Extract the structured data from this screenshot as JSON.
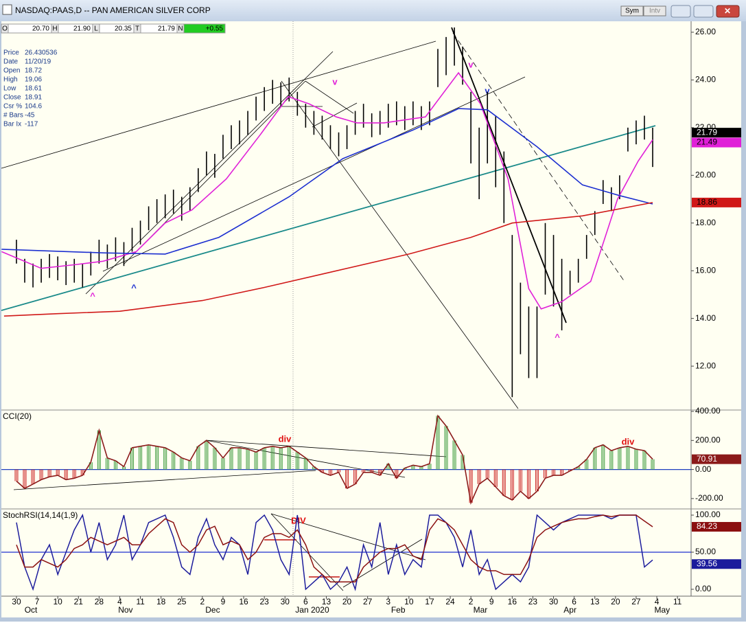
{
  "window": {
    "title": "NASDAQ:PAAS,D -- PAN AMERICAN SILVER CORP",
    "buttons": [
      "Sym",
      "Intv"
    ]
  },
  "ohlc_bar": [
    {
      "key": "O",
      "value": "20.70"
    },
    {
      "key": "H",
      "value": "21.90"
    },
    {
      "key": "L",
      "value": "20.35"
    },
    {
      "key": "T",
      "value": "21.79"
    },
    {
      "key": "N",
      "value": "+0.55"
    }
  ],
  "info_panel": [
    {
      "label": "Price",
      "value": "26.430536"
    },
    {
      "label": "Date",
      "value": "11/20/19"
    },
    {
      "label": "Open",
      "value": "18.72"
    },
    {
      "label": "High",
      "value": "19.06"
    },
    {
      "label": "Low",
      "value": "18.61"
    },
    {
      "label": "Close",
      "value": "18.91"
    },
    {
      "label": "Csr %",
      "value": "104.6"
    },
    {
      "label": "# Bars",
      "value": "-45"
    },
    {
      "label": "Bar Ix",
      "value": "-117"
    }
  ],
  "chart_data": [
    {
      "type": "ohlc",
      "color": "#000000",
      "ylim": [
        10.16,
        26.43
      ],
      "yticks": [
        {
          "value": 12,
          "label": "12.00"
        },
        {
          "value": 14,
          "label": "14.00"
        },
        {
          "value": 16,
          "label": "16.00"
        },
        {
          "value": 18,
          "label": "18.00"
        },
        {
          "value": 20,
          "label": "20.00"
        },
        {
          "value": 22,
          "label": "22.00"
        },
        {
          "value": 24,
          "label": "24.00"
        },
        {
          "value": 26,
          "label": "26.00"
        }
      ],
      "x": [
        0,
        2,
        4,
        6,
        8,
        10,
        12,
        14,
        16,
        18,
        20,
        22,
        24,
        26,
        28,
        30,
        32,
        34,
        36,
        38,
        40,
        42,
        44,
        46,
        48,
        50,
        52,
        54,
        56,
        58,
        60,
        62,
        64,
        66,
        68,
        70,
        72,
        74,
        76,
        78,
        80,
        82,
        84,
        86,
        88,
        90,
        92,
        94,
        96,
        98,
        100,
        102,
        104,
        106,
        108,
        110,
        112,
        114,
        116,
        118,
        120,
        122,
        124,
        126,
        128,
        130,
        132,
        134,
        136,
        138,
        140,
        142,
        144,
        146,
        148,
        150,
        152,
        154
      ],
      "high": [
        17.3,
        16.5,
        16.3,
        16.5,
        16.7,
        16.6,
        16.4,
        16.5,
        16.3,
        16.8,
        17.3,
        17.1,
        17.4,
        17.2,
        17.8,
        18.1,
        18.7,
        19.0,
        19.2,
        19.4,
        19.1,
        19.5,
        20.3,
        21.0,
        20.9,
        21.7,
        22.1,
        22.3,
        22.7,
        23.3,
        23.7,
        24.0,
        23.9,
        24.1,
        23.5,
        23.0,
        22.7,
        22.5,
        22.1,
        21.8,
        22.1,
        22.7,
        23.0,
        22.6,
        22.7,
        23.0,
        23.1,
        22.9,
        23.1,
        22.9,
        23.1,
        25.3,
        25.8,
        26.2,
        25.4,
        23.5,
        22.0,
        23.5,
        22.5,
        21.0,
        17.5,
        15.5,
        14.5,
        14.5,
        18.0,
        17.5,
        16.5,
        16.0,
        16.5,
        17.5,
        18.5,
        19.8,
        19.5,
        20.0,
        22.0,
        22.3,
        22.5,
        22.0
      ],
      "low": [
        16.3,
        15.5,
        15.3,
        15.5,
        15.7,
        15.6,
        15.4,
        15.5,
        15.3,
        15.8,
        16.3,
        16.1,
        16.4,
        16.2,
        16.8,
        17.1,
        17.7,
        18.0,
        18.2,
        18.4,
        18.1,
        18.5,
        19.3,
        20.0,
        19.9,
        20.7,
        21.1,
        21.3,
        21.7,
        22.3,
        22.7,
        23.0,
        22.9,
        23.1,
        22.5,
        22.0,
        21.7,
        21.5,
        21.1,
        20.8,
        21.1,
        21.7,
        22.0,
        21.6,
        21.7,
        22.0,
        22.1,
        21.9,
        22.1,
        21.9,
        22.1,
        23.7,
        24.2,
        24.6,
        23.8,
        20.5,
        19.0,
        20.5,
        19.5,
        18.0,
        10.7,
        12.5,
        11.5,
        11.5,
        15.0,
        14.5,
        13.5,
        15.0,
        15.5,
        16.5,
        17.5,
        18.8,
        18.5,
        19.0,
        21.0,
        21.3,
        21.5,
        20.35
      ],
      "series": [
        {
          "color": "#e020d8",
          "x": [
            -3.6,
            6,
            14,
            21,
            29,
            36,
            42.5,
            50.8,
            59,
            65.8,
            70.8,
            77.4,
            82.4,
            89,
            99,
            107,
            112.3,
            119,
            124,
            127,
            132,
            139,
            145.5,
            150.5,
            154
          ],
          "values": [
            16.8,
            16.1,
            16.25,
            16.4,
            16.8,
            18.0,
            18.55,
            19.85,
            21.7,
            23.3,
            23.0,
            22.45,
            22.2,
            22.2,
            22.45,
            24.3,
            23.0,
            19.85,
            15.25,
            14.4,
            14.7,
            15.55,
            19.0,
            20.6,
            21.49
          ]
        },
        {
          "color": "#1c2fd0",
          "x": [
            -3.6,
            21,
            36,
            49,
            66,
            79,
            96,
            107,
            114,
            126,
            137,
            146,
            154
          ],
          "values": [
            16.9,
            16.75,
            16.7,
            17.4,
            19.1,
            20.7,
            21.9,
            22.8,
            22.75,
            21.2,
            19.6,
            19.15,
            18.8
          ]
        },
        {
          "color": "#d01818",
          "x": [
            -3,
            10,
            25,
            45,
            60,
            75,
            95,
            110,
            120,
            137,
            154
          ],
          "values": [
            14.1,
            14.2,
            14.3,
            14.75,
            15.3,
            15.9,
            16.7,
            17.4,
            18.0,
            18.3,
            18.86
          ]
        }
      ],
      "annotations": [
        {
          "text": "^",
          "color": "#e020d8"
        },
        {
          "text": "^",
          "color": "#1c2fd0"
        },
        {
          "text": "v",
          "color": "#e020d8"
        },
        {
          "text": "v",
          "color": "#e020d8"
        },
        {
          "text": "v",
          "color": "#1c2fd0"
        },
        {
          "text": "^",
          "color": "#e020d8"
        }
      ]
    },
    {
      "type": "cci",
      "title": "CCI(20)",
      "pos_color": "#3a9a3a",
      "neg_color": "#cc2222",
      "line_color": "#8b1a1a",
      "hline": 0,
      "hline_color": "#1f3fbf",
      "ylim": [
        -271.4,
        404.8
      ],
      "yticks": [
        {
          "value": -200,
          "label": "-200.00"
        },
        {
          "value": 0,
          "label": "0.00"
        },
        {
          "value": 200,
          "label": "200.00"
        },
        {
          "value": 400,
          "label": "400.00"
        }
      ],
      "x": [
        0,
        2,
        4,
        6,
        8,
        10,
        12,
        14,
        16,
        18,
        20,
        22,
        24,
        26,
        28,
        30,
        32,
        34,
        36,
        38,
        40,
        42,
        44,
        46,
        48,
        50,
        52,
        54,
        56,
        58,
        60,
        62,
        64,
        66,
        68,
        70,
        72,
        74,
        76,
        78,
        80,
        82,
        84,
        86,
        88,
        90,
        92,
        94,
        96,
        98,
        100,
        102,
        104,
        106,
        108,
        110,
        112,
        114,
        116,
        118,
        120,
        122,
        124,
        126,
        128,
        130,
        132,
        134,
        136,
        138,
        140,
        142,
        144,
        146,
        148,
        150,
        152,
        154
      ],
      "values": [
        -80,
        -130,
        -100,
        -70,
        -50,
        -40,
        -70,
        -60,
        -40,
        50,
        270,
        80,
        60,
        20,
        150,
        160,
        170,
        160,
        150,
        120,
        80,
        60,
        160,
        200,
        150,
        80,
        150,
        150,
        140,
        120,
        150,
        160,
        150,
        160,
        120,
        80,
        20,
        -20,
        -40,
        -20,
        -130,
        -100,
        -20,
        -20,
        -40,
        40,
        -60,
        10,
        30,
        20,
        40,
        370,
        300,
        200,
        100,
        -230,
        -100,
        -60,
        -120,
        -180,
        -210,
        -150,
        -200,
        -150,
        -60,
        -40,
        -40,
        -10,
        20,
        70,
        150,
        170,
        130,
        150,
        160,
        140,
        130,
        70.91
      ],
      "annotations": [
        {
          "text": "div",
          "color": "#e01010"
        },
        {
          "text": "div",
          "color": "#e01010"
        }
      ]
    },
    {
      "type": "line",
      "title": "StochRSI(14,14(1,9)",
      "hline": 50,
      "hline_color": "#1f2fd0",
      "ylim": [
        -9.26,
        107.4
      ],
      "yticks": [
        {
          "value": 0,
          "label": "0.00"
        },
        {
          "value": 50,
          "label": "50.00"
        },
        {
          "value": 100,
          "label": "100.00"
        }
      ],
      "xlim": [
        -3.65,
        163.3
      ],
      "xticks": [
        {
          "value": 0,
          "label": "30"
        },
        {
          "value": 5,
          "label": "7"
        },
        10,
        {
          "value": 15,
          "label": "21"
        },
        {
          "value": 20,
          "label": "28"
        },
        {
          "value": 25,
          "label": "4"
        },
        {
          "value": 30,
          "label": "11"
        },
        {
          "value": 35,
          "label": "18"
        },
        {
          "value": 40,
          "label": "25"
        },
        {
          "value": 45,
          "label": "2"
        },
        {
          "value": 50,
          "label": "9"
        },
        {
          "value": 55,
          "label": "16"
        },
        {
          "value": 60,
          "label": "23"
        },
        {
          "value": 65,
          "label": "30"
        },
        {
          "value": 70,
          "label": "6"
        },
        {
          "value": 75,
          "label": "13"
        },
        {
          "value": 80,
          "label": "20"
        },
        {
          "value": 85,
          "label": "27"
        },
        {
          "value": 90,
          "label": "3"
        },
        {
          "value": 95,
          "label": "10"
        },
        {
          "value": 100,
          "label": "17"
        },
        {
          "value": 105,
          "label": "24"
        },
        {
          "value": 110,
          "label": "2"
        },
        {
          "value": 115,
          "label": "9"
        },
        {
          "value": 120,
          "label": "16"
        },
        {
          "value": 125,
          "label": "23"
        },
        {
          "value": 130,
          "label": "30"
        },
        {
          "value": 135,
          "label": "6"
        },
        {
          "value": 140,
          "label": "13"
        },
        {
          "value": 145,
          "label": "20"
        },
        {
          "value": 150,
          "label": "27"
        },
        {
          "value": 155,
          "label": "4"
        },
        {
          "value": 160,
          "label": "11"
        }
      ],
      "months": [
        {
          "value": 3.5,
          "label": "Oct"
        },
        {
          "value": 26.4,
          "label": "Nov"
        },
        {
          "value": 47.5,
          "label": "Dec"
        },
        {
          "value": 71.6,
          "label": "Jan 2020"
        },
        {
          "value": 92.4,
          "label": "Feb"
        },
        {
          "value": 112.3,
          "label": "Mar"
        },
        {
          "value": 134,
          "label": "Apr"
        },
        {
          "value": 156.3,
          "label": "May"
        }
      ],
      "series": [
        {
          "color": "#1c1c9c",
          "x": [
            0,
            2,
            4,
            6,
            8,
            10,
            12,
            14,
            16,
            18,
            20,
            22,
            24,
            26,
            28,
            30,
            32,
            34,
            36,
            38,
            40,
            42,
            44,
            46,
            48,
            50,
            52,
            54,
            56,
            58,
            60,
            62,
            64,
            66,
            68,
            70,
            72,
            74,
            76,
            78,
            80,
            82,
            84,
            86,
            88,
            90,
            92,
            94,
            96,
            98,
            100,
            102,
            104,
            106,
            108,
            110,
            112,
            114,
            116,
            118,
            120,
            122,
            124,
            126,
            128,
            130,
            132,
            134,
            136,
            138,
            140,
            142,
            144,
            146,
            148,
            150,
            152,
            154
          ],
          "values": [
            90,
            30,
            0,
            40,
            60,
            20,
            50,
            80,
            100,
            50,
            90,
            40,
            60,
            100,
            40,
            60,
            90,
            95,
            100,
            70,
            30,
            20,
            70,
            95,
            60,
            40,
            70,
            60,
            20,
            90,
            100,
            80,
            40,
            20,
            100,
            0,
            10,
            20,
            0,
            10,
            30,
            0,
            60,
            30,
            90,
            20,
            60,
            20,
            40,
            30,
            100,
            100,
            90,
            70,
            30,
            80,
            20,
            40,
            0,
            10,
            20,
            10,
            30,
            100,
            90,
            80,
            90,
            95,
            100,
            100,
            100,
            100,
            95,
            100,
            100,
            100,
            30,
            39.56
          ]
        },
        {
          "color": "#8b1010",
          "x": [
            0,
            2,
            4,
            6,
            8,
            10,
            12,
            14,
            16,
            18,
            20,
            22,
            24,
            26,
            28,
            30,
            32,
            34,
            36,
            38,
            40,
            42,
            44,
            46,
            48,
            50,
            52,
            54,
            56,
            58,
            60,
            62,
            64,
            66,
            68,
            70,
            72,
            74,
            76,
            78,
            80,
            82,
            84,
            86,
            88,
            90,
            92,
            94,
            96,
            98,
            100,
            102,
            104,
            106,
            108,
            110,
            112,
            114,
            116,
            118,
            120,
            122,
            124,
            126,
            128,
            130,
            132,
            134,
            136,
            138,
            140,
            142,
            144,
            146,
            148,
            150,
            152,
            154
          ],
          "values": [
            60,
            30,
            30,
            40,
            35,
            30,
            40,
            55,
            60,
            70,
            65,
            60,
            65,
            70,
            60,
            60,
            75,
            85,
            95,
            90,
            60,
            50,
            60,
            80,
            85,
            60,
            65,
            60,
            40,
            50,
            70,
            75,
            75,
            70,
            80,
            60,
            30,
            20,
            10,
            10,
            10,
            10,
            30,
            40,
            50,
            55,
            55,
            60,
            45,
            40,
            80,
            95,
            90,
            80,
            60,
            40,
            30,
            25,
            25,
            20,
            20,
            20,
            40,
            70,
            80,
            85,
            90,
            93,
            95,
            95,
            98,
            100,
            98,
            100,
            100,
            100,
            92,
            84.23
          ]
        }
      ],
      "annotations": [
        {
          "text": "DIV",
          "color": "#e01010"
        }
      ]
    }
  ]
}
